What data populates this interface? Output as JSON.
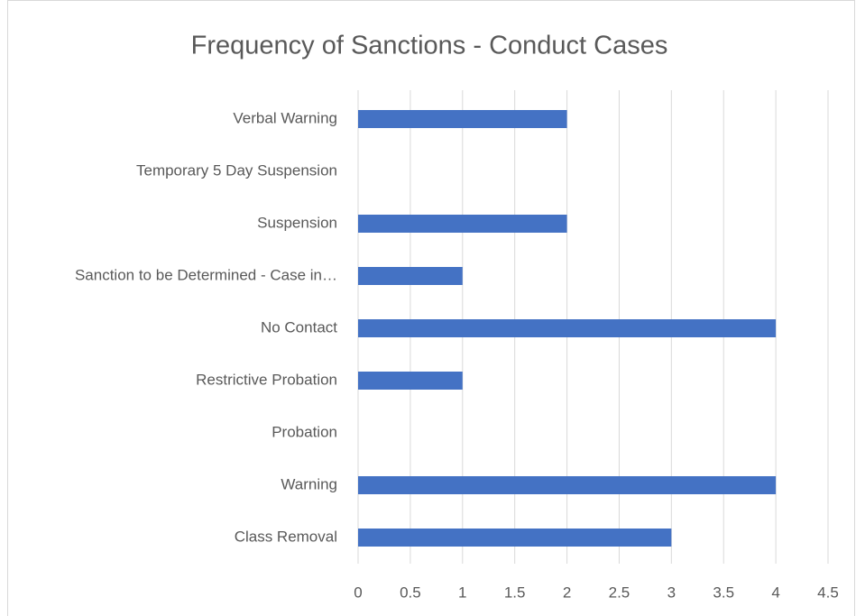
{
  "chart_data": {
    "type": "bar",
    "orientation": "horizontal",
    "title": "Frequency of Sanctions - Conduct Cases",
    "categories": [
      "Verbal Warning",
      "Temporary 5 Day Suspension",
      "Suspension",
      "Sanction to be Determined - Case in…",
      "No Contact",
      "Restrictive Probation",
      "Probation",
      "Warning",
      "Class Removal"
    ],
    "values": [
      2,
      0,
      2,
      1,
      4,
      1,
      0,
      4,
      3
    ],
    "color": "#4472c4",
    "xlim": [
      0,
      4.5
    ],
    "xticks": [
      0,
      0.5,
      1,
      1.5,
      2,
      2.5,
      3,
      3.5,
      4,
      4.5
    ],
    "grid": true
  }
}
